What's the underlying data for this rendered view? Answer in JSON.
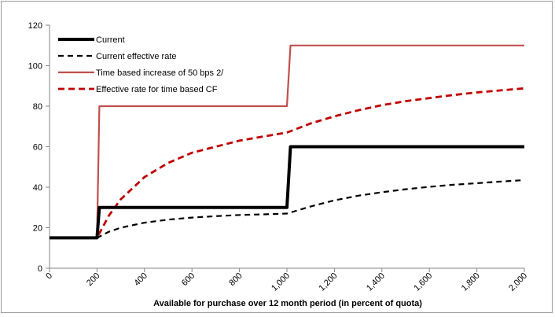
{
  "chart_data": {
    "type": "line",
    "title": "",
    "xlabel": "Available for purchase over 12 month period (in percent of quota)",
    "ylabel": "",
    "xlim": [
      0,
      2000
    ],
    "ylim": [
      0,
      120
    ],
    "xticks": [
      0,
      200,
      400,
      600,
      800,
      1000,
      1200,
      1400,
      1600,
      1800,
      2000
    ],
    "xtick_labels": [
      "0",
      "200",
      "400",
      "600",
      "800",
      "1,000",
      "1,200",
      "1,400",
      "1,600",
      "1,800",
      "2,000"
    ],
    "yticks": [
      0,
      20,
      40,
      60,
      80,
      100,
      120
    ],
    "ytick_labels": [
      "0",
      "20",
      "40",
      "60",
      "80",
      "100",
      "120"
    ],
    "grid": false,
    "legend_position": "top-left",
    "series": [
      {
        "name": "Current",
        "color": "#000000",
        "style": "solid-thick",
        "x": [
          0,
          200,
          210,
          1000,
          1015,
          2000
        ],
        "y": [
          15,
          15,
          30,
          30,
          60,
          60
        ]
      },
      {
        "name": "Current effective rate",
        "color": "#000000",
        "style": "dashed",
        "x": [
          0,
          200,
          250,
          300,
          400,
          500,
          600,
          700,
          800,
          900,
          1000,
          1100,
          1200,
          1300,
          1400,
          1500,
          1600,
          1700,
          1800,
          1900,
          2000
        ],
        "y": [
          15,
          15,
          18,
          20,
          22.5,
          24,
          25,
          25.7,
          26.3,
          26.6,
          27,
          30.5,
          33.5,
          35.8,
          37.5,
          39,
          40.2,
          41.2,
          42,
          42.8,
          43.5
        ]
      },
      {
        "name": "Time based increase of 50 bps 2/",
        "color": "#c0504d",
        "style": "solid",
        "x": [
          0,
          200,
          210,
          1000,
          1015,
          2000
        ],
        "y": [
          15,
          15,
          80,
          80,
          110,
          110
        ]
      },
      {
        "name": "Effective rate for time based CF",
        "color": "#c00000",
        "style": "dashed",
        "x": [
          0,
          200,
          250,
          300,
          400,
          500,
          600,
          700,
          800,
          900,
          1000,
          1100,
          1200,
          1300,
          1400,
          1500,
          1600,
          1700,
          1800,
          1900,
          2000
        ],
        "y": [
          15,
          15,
          26,
          34,
          45,
          52,
          57,
          60,
          63,
          65,
          67,
          71.5,
          75,
          78,
          80.5,
          82.5,
          84,
          85.5,
          86.8,
          87.8,
          88.8
        ]
      }
    ]
  }
}
